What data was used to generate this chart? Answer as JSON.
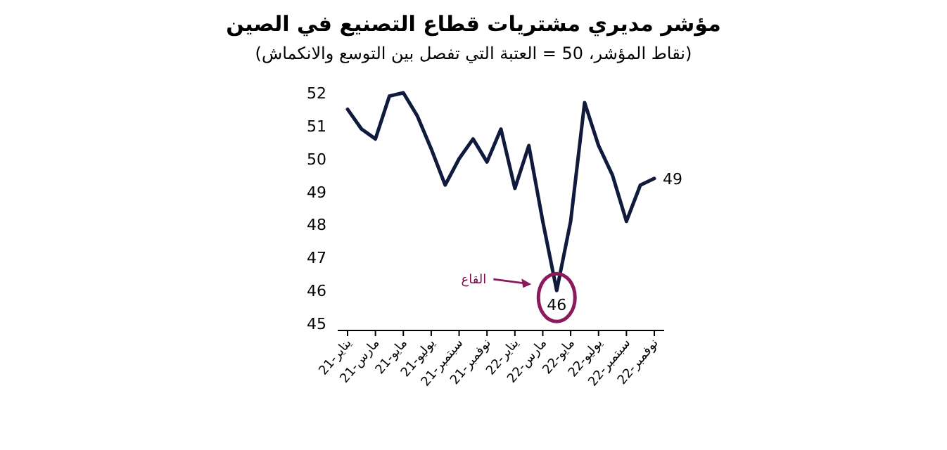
{
  "chart_data": {
    "type": "line",
    "title": "مؤشر مديري مشتريات قطاع التصنيع في الصين",
    "subtitle": "(نقاط المؤشر، 50 = العتبة التي تفصل بين التوسع والانكماش)",
    "categories": [
      "يناير-21",
      null,
      "مارس-21",
      null,
      "مايو-21",
      null,
      "يوليو-21",
      null,
      "سبتمبر-21",
      null,
      "نوفمبر-21",
      null,
      "يناير-22",
      null,
      "مارس-22",
      null,
      "مايو-22",
      null,
      "يوليو-22",
      null,
      "سبتمبر-22",
      null,
      "نوفمبر-22"
    ],
    "series": [
      {
        "color": "#0f1a3c",
        "values": [
          51.5,
          50.9,
          50.6,
          51.9,
          52.0,
          51.3,
          50.3,
          49.2,
          50.0,
          50.6,
          49.9,
          50.9,
          49.1,
          50.4,
          48.1,
          46.0,
          48.1,
          51.7,
          50.4,
          49.5,
          48.1,
          49.2,
          49.4
        ],
        "value_labels": [
          null,
          null,
          null,
          null,
          null,
          null,
          null,
          null,
          null,
          null,
          null,
          null,
          null,
          null,
          null,
          "46",
          null,
          null,
          null,
          null,
          null,
          null,
          "49"
        ]
      }
    ],
    "ylim": [
      45,
      52
    ],
    "yticks": [
      45,
      46,
      47,
      48,
      49,
      50,
      51,
      52
    ],
    "grid": false,
    "annotations": [
      "القاع"
    ]
  }
}
